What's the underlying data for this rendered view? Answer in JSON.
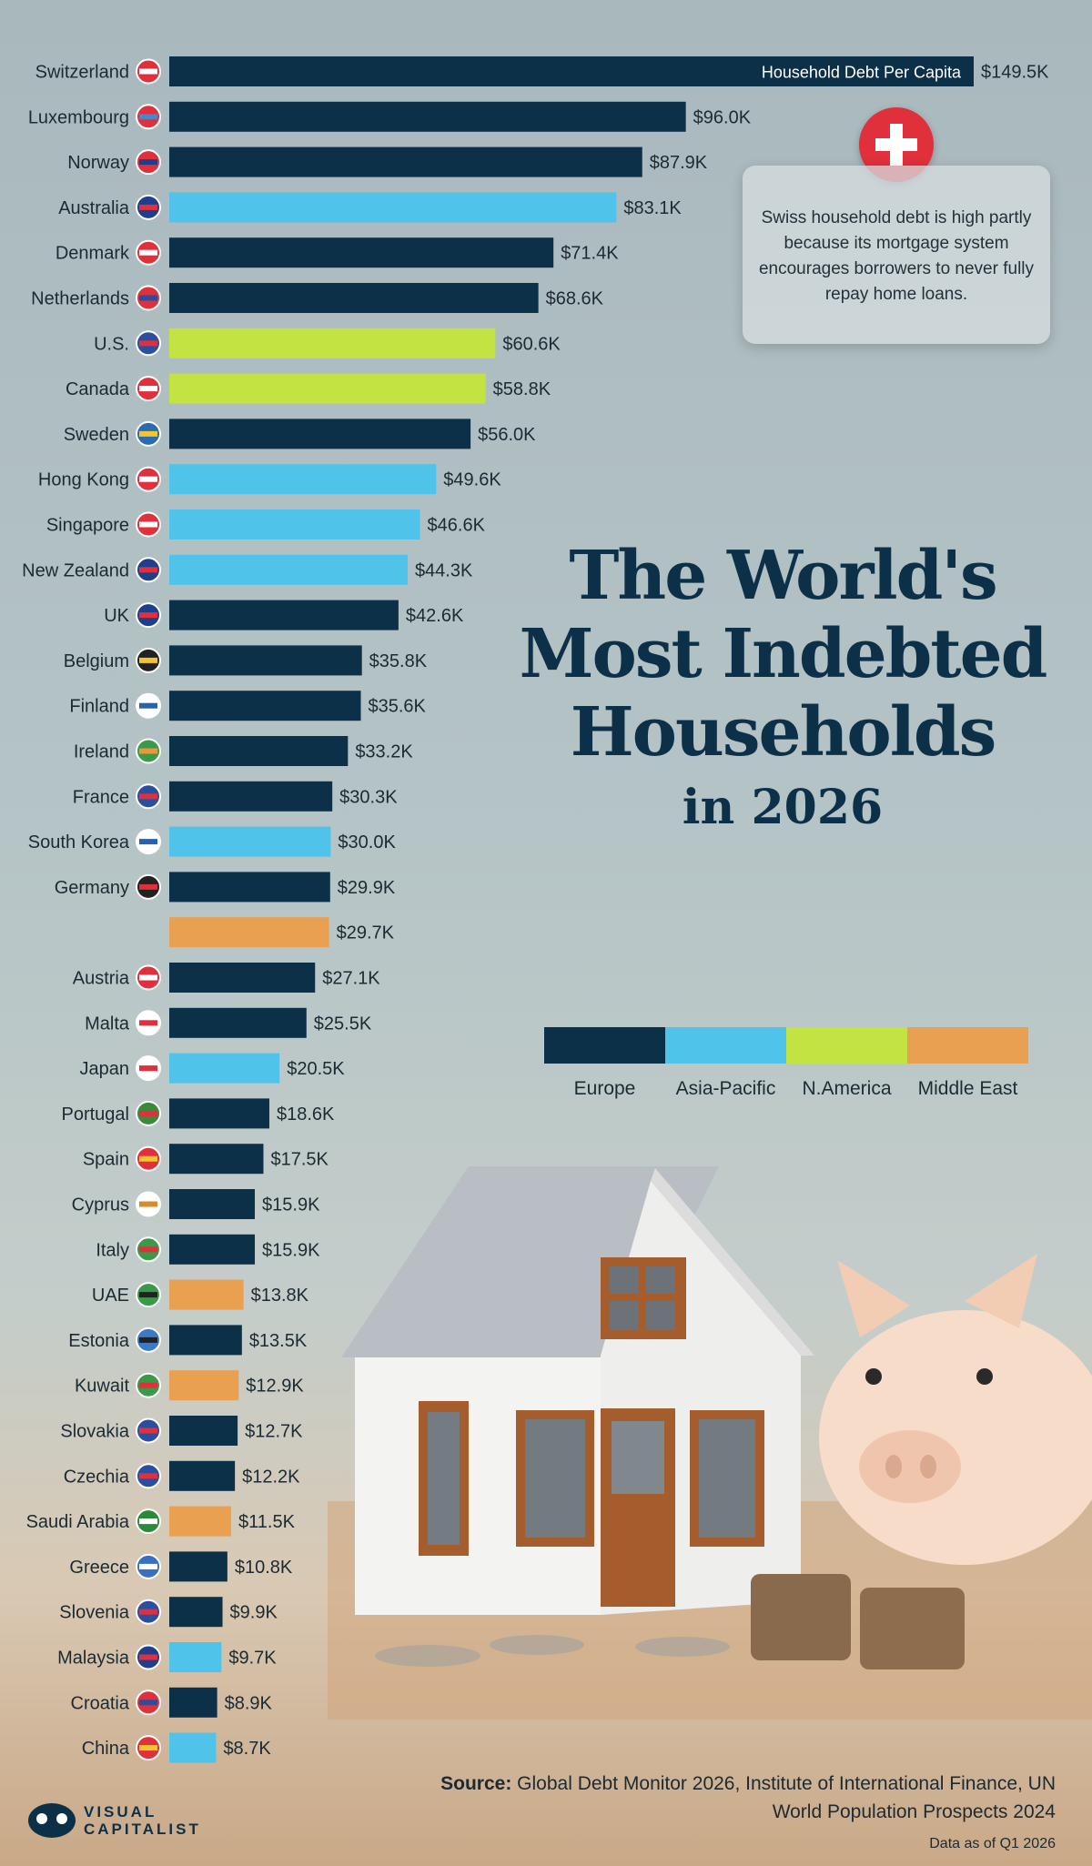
{
  "title": {
    "line1": "The World's",
    "line2": "Most Indebted",
    "line3": "Households",
    "line4": "in 2026"
  },
  "callout_text": "Swiss household debt is high partly because its mortgage system encourages borrowers to never fully repay home loans.",
  "legend": [
    {
      "label": "Europe",
      "color": "#0d3049"
    },
    {
      "label": "Asia-Pacific",
      "color": "#4fc3ea"
    },
    {
      "label": "N.America",
      "color": "#c3e342"
    },
    {
      "label": "Middle East",
      "color": "#e9a050"
    }
  ],
  "source": {
    "label": "Source:",
    "text": "Global Debt Monitor 2026, Institute of International Finance, UN World Population Prospects 2024",
    "as_of": "Data as of Q1 2026"
  },
  "logo": {
    "line1": "VISUAL",
    "line2": "CAPITALIST"
  },
  "chart_data": {
    "type": "bar",
    "orientation": "horizontal",
    "series_label": "Household Debt Per Capita",
    "categories": [
      "Switzerland",
      "Luxembourg",
      "Norway",
      "Australia",
      "Denmark",
      "Netherlands",
      "U.S.",
      "Canada",
      "Sweden",
      "Hong Kong",
      "Singapore",
      "New Zealand",
      "UK",
      "Belgium",
      "Finland",
      "Ireland",
      "France",
      "South Korea",
      "Germany",
      "",
      "Austria",
      "Malta",
      "Japan",
      "Portugal",
      "Spain",
      "Cyprus",
      "Italy",
      "UAE",
      "Estonia",
      "Kuwait",
      "Slovakia",
      "Czechia",
      "Saudi Arabia",
      "Greece",
      "Slovenia",
      "Malaysia",
      "Croatia",
      "China"
    ],
    "values": [
      149.5,
      96.0,
      87.9,
      83.1,
      71.4,
      68.6,
      60.6,
      58.8,
      56.0,
      49.6,
      46.6,
      44.3,
      42.6,
      35.8,
      35.6,
      33.2,
      30.3,
      30.0,
      29.9,
      29.7,
      27.1,
      25.5,
      20.5,
      18.6,
      17.5,
      15.9,
      15.9,
      13.8,
      13.5,
      12.9,
      12.7,
      12.2,
      11.5,
      10.8,
      9.9,
      9.7,
      8.9,
      8.7
    ],
    "labels": [
      "$149.5K",
      "$96.0K",
      "$87.9K",
      "$83.1K",
      "$71.4K",
      "$68.6K",
      "$60.6K",
      "$58.8K",
      "$56.0K",
      "$49.6K",
      "$46.6K",
      "$44.3K",
      "$42.6K",
      "$35.8K",
      "$35.6K",
      "$33.2K",
      "$30.3K",
      "$30.0K",
      "$29.9K",
      "$29.7K",
      "$27.1K",
      "$25.5K",
      "$20.5K",
      "$18.6K",
      "$17.5K",
      "$15.9K",
      "$15.9K",
      "$13.8K",
      "$13.5K",
      "$12.9K",
      "$12.7K",
      "$12.2K",
      "$11.5K",
      "$10.8K",
      "$9.9K",
      "$9.7K",
      "$8.9K",
      "$8.7K"
    ],
    "regions": [
      "Europe",
      "Europe",
      "Europe",
      "Asia-Pacific",
      "Europe",
      "Europe",
      "N.America",
      "N.America",
      "Europe",
      "Asia-Pacific",
      "Asia-Pacific",
      "Asia-Pacific",
      "Europe",
      "Europe",
      "Europe",
      "Europe",
      "Europe",
      "Asia-Pacific",
      "Europe",
      "Middle East",
      "Europe",
      "Europe",
      "Asia-Pacific",
      "Europe",
      "Europe",
      "Europe",
      "Europe",
      "Middle East",
      "Europe",
      "Middle East",
      "Europe",
      "Europe",
      "Middle East",
      "Europe",
      "Europe",
      "Asia-Pacific",
      "Europe",
      "Asia-Pacific"
    ],
    "flag_colors": [
      [
        "#e0303b",
        "#ffffff"
      ],
      [
        "#e0303b",
        "#4a86c8"
      ],
      [
        "#e0303b",
        "#1f3f8c"
      ],
      [
        "#1f3f8c",
        "#e0303b"
      ],
      [
        "#e0303b",
        "#ffffff"
      ],
      [
        "#e0303b",
        "#2b4fa0"
      ],
      [
        "#2b4fa0",
        "#e0303b"
      ],
      [
        "#e0303b",
        "#ffffff"
      ],
      [
        "#2b6cb0",
        "#f2c530"
      ],
      [
        "#e0303b",
        "#ffffff"
      ],
      [
        "#e0303b",
        "#ffffff"
      ],
      [
        "#1f3f8c",
        "#e0303b"
      ],
      [
        "#1f3f8c",
        "#e0303b"
      ],
      [
        "#222222",
        "#f2c530"
      ],
      [
        "#ffffff",
        "#2b5fb0"
      ],
      [
        "#3a9a4a",
        "#f0953a"
      ],
      [
        "#2b4fa0",
        "#e0303b"
      ],
      [
        "#ffffff",
        "#2b5fb0"
      ],
      [
        "#222222",
        "#e0303b"
      ],
      [
        "#cccccc",
        "#cccccc"
      ],
      [
        "#e0303b",
        "#ffffff"
      ],
      [
        "#ffffff",
        "#e0303b"
      ],
      [
        "#ffffff",
        "#e0303b"
      ],
      [
        "#3a8a3a",
        "#e0303b"
      ],
      [
        "#e0303b",
        "#f2c530"
      ],
      [
        "#ffffff",
        "#d98a2a"
      ],
      [
        "#3a9a4a",
        "#e0303b"
      ],
      [
        "#3a9a4a",
        "#222222"
      ],
      [
        "#3a7ac8",
        "#222222"
      ],
      [
        "#3a9a4a",
        "#e0303b"
      ],
      [
        "#2b4fa0",
        "#e0303b"
      ],
      [
        "#2b4fa0",
        "#e0303b"
      ],
      [
        "#2a8a3a",
        "#ffffff"
      ],
      [
        "#3a70c0",
        "#ffffff"
      ],
      [
        "#2b4fa0",
        "#e0303b"
      ],
      [
        "#1f3f8c",
        "#e0303b"
      ],
      [
        "#e0303b",
        "#2b4fa0"
      ],
      [
        "#e0303b",
        "#f2c530"
      ]
    ],
    "xlim": [
      0,
      149.5
    ]
  }
}
